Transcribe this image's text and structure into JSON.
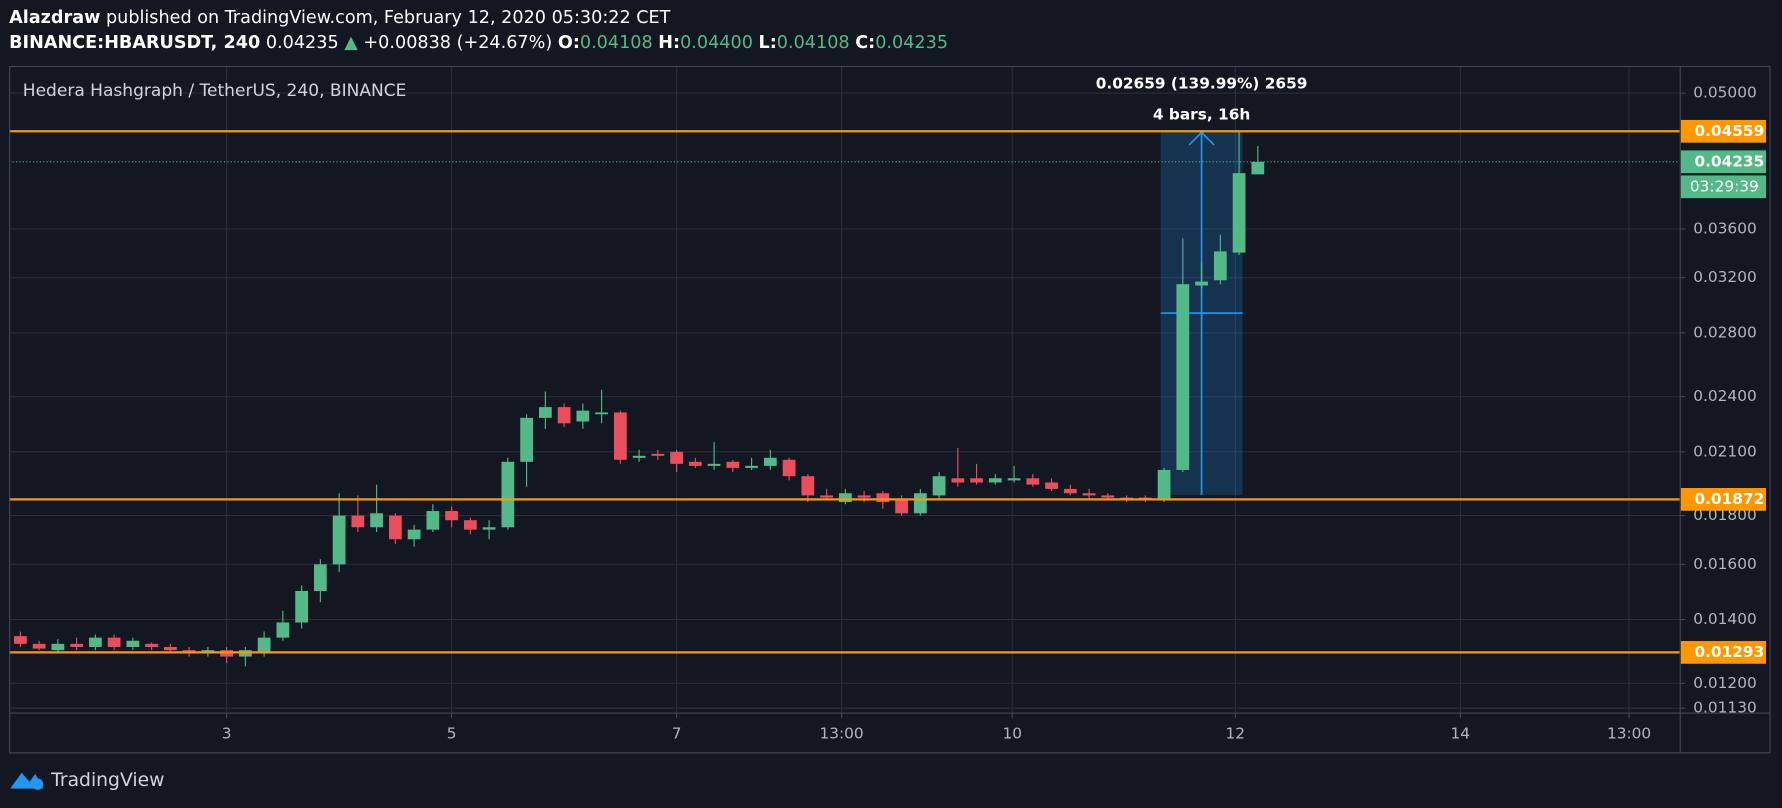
{
  "header": {
    "author": "Alazdraw",
    "published": "published on TradingView.com, February 12, 2020 05:30:22 CET",
    "symbol": "BINANCE:HBARUSDT, 240",
    "last": "0.04235",
    "arrow": "▲",
    "change": "+0.00838 (+24.67%)",
    "open_label": "O:",
    "open": "0.04108",
    "high_label": "H:",
    "high": "0.04400",
    "low_label": "L:",
    "low": "0.04108",
    "close_label": "C:",
    "close": "0.04235"
  },
  "chart_data": {
    "type": "candlestick",
    "title": "Hedera Hashgraph / TetherUS, 240, BINANCE",
    "open": [
      0.01345,
      0.0132,
      0.013,
      0.0132,
      0.0131,
      0.0134,
      0.0131,
      0.0132,
      0.0131,
      0.013,
      0.0129,
      0.013,
      0.0128,
      0.0129,
      0.0134,
      0.0139,
      0.015,
      0.016,
      0.018,
      0.0175,
      0.018,
      0.017,
      0.0174,
      0.0182,
      0.0178,
      0.0174,
      0.0175,
      0.0205,
      0.0228,
      0.0234,
      0.0226,
      0.023,
      0.0231,
      0.0207,
      0.0209,
      0.021,
      0.0205,
      0.0203,
      0.0205,
      0.0202,
      0.0203,
      0.0206,
      0.0198,
      0.0189,
      0.0186,
      0.0189,
      0.019,
      0.0187,
      0.0181,
      0.0189,
      0.0197,
      0.0197,
      0.0195,
      0.0196,
      0.0197,
      0.0195,
      0.0192,
      0.019,
      0.0189,
      0.0188,
      0.0188,
      0.0187,
      0.0201,
      0.0314,
      0.0318,
      0.034,
      0.04108
    ],
    "high": [
      0.0136,
      0.0133,
      0.01335,
      0.0134,
      0.0135,
      0.0135,
      0.0134,
      0.01325,
      0.0132,
      0.0131,
      0.0131,
      0.0131,
      0.0131,
      0.0136,
      0.0143,
      0.0152,
      0.0162,
      0.019,
      0.0189,
      0.0194,
      0.0181,
      0.0176,
      0.0185,
      0.0184,
      0.0179,
      0.0178,
      0.0207,
      0.023,
      0.0243,
      0.0236,
      0.0236,
      0.0244,
      0.0232,
      0.0211,
      0.0211,
      0.0211,
      0.0207,
      0.0215,
      0.0206,
      0.0207,
      0.0211,
      0.0207,
      0.0199,
      0.0192,
      0.0192,
      0.0191,
      0.0191,
      0.0189,
      0.0192,
      0.02,
      0.0212,
      0.0204,
      0.0199,
      0.0203,
      0.0199,
      0.0197,
      0.0194,
      0.0192,
      0.019,
      0.0189,
      0.0189,
      0.0202,
      0.0352,
      0.0332,
      0.0355,
      0.0456,
      0.044
    ],
    "low": [
      0.0131,
      0.013,
      0.0129,
      0.013,
      0.013,
      0.013,
      0.013,
      0.013,
      0.0129,
      0.0128,
      0.0128,
      0.0126,
      0.0125,
      0.0128,
      0.0133,
      0.0137,
      0.0146,
      0.0157,
      0.0173,
      0.0173,
      0.0168,
      0.0167,
      0.0173,
      0.0175,
      0.0172,
      0.017,
      0.0174,
      0.0193,
      0.0222,
      0.0223,
      0.0222,
      0.0225,
      0.0204,
      0.0205,
      0.0206,
      0.02,
      0.0202,
      0.0201,
      0.02,
      0.0201,
      0.0201,
      0.0196,
      0.0186,
      0.0187,
      0.0185,
      0.0186,
      0.0183,
      0.018,
      0.018,
      0.0187,
      0.0193,
      0.0194,
      0.0194,
      0.0195,
      0.0193,
      0.0191,
      0.0189,
      0.0187,
      0.0187,
      0.0186,
      0.0186,
      0.0186,
      0.02,
      0.0312,
      0.0315,
      0.0338,
      0.04108
    ],
    "close": [
      0.0132,
      0.01305,
      0.0132,
      0.0131,
      0.0134,
      0.0131,
      0.0133,
      0.0131,
      0.013,
      0.0129,
      0.013,
      0.0128,
      0.013,
      0.0134,
      0.0139,
      0.015,
      0.016,
      0.018,
      0.0175,
      0.0181,
      0.017,
      0.0174,
      0.0182,
      0.0178,
      0.0174,
      0.0175,
      0.0205,
      0.0228,
      0.0234,
      0.0225,
      0.0232,
      0.0231,
      0.0206,
      0.0208,
      0.0208,
      0.0204,
      0.0203,
      0.0204,
      0.0202,
      0.0203,
      0.0207,
      0.0198,
      0.0189,
      0.0188,
      0.019,
      0.0188,
      0.0186,
      0.0181,
      0.019,
      0.0198,
      0.0195,
      0.0195,
      0.0197,
      0.0197,
      0.0194,
      0.0192,
      0.019,
      0.0189,
      0.0188,
      0.0187,
      0.0187,
      0.0201,
      0.0315,
      0.0317,
      0.0341,
      0.0412,
      0.04235
    ],
    "up_color": "#53b987",
    "down_color": "#eb4d5c",
    "log_scale": true,
    "grid": true,
    "ylim": [
      0.01118,
      0.0534
    ],
    "yticks": [
      {
        "value": 0.05,
        "label": "0.05000"
      },
      {
        "value": 0.036,
        "label": "0.03600"
      },
      {
        "value": 0.032,
        "label": "0.03200"
      },
      {
        "value": 0.028,
        "label": "0.02800"
      },
      {
        "value": 0.024,
        "label": "0.02400"
      },
      {
        "value": 0.021,
        "label": "0.02100"
      },
      {
        "value": 0.018,
        "label": "0.01800"
      },
      {
        "value": 0.016,
        "label": "0.01600"
      },
      {
        "value": 0.014,
        "label": "0.01400"
      },
      {
        "value": 0.012,
        "label": "0.01200"
      },
      {
        "value": 0.0113,
        "label": "0.01130"
      }
    ],
    "xlim": [
      -0.6,
      88.5
    ],
    "xticks": [
      {
        "value": 11,
        "label": "3"
      },
      {
        "value": 23,
        "label": "5"
      },
      {
        "value": 35,
        "label": "7"
      },
      {
        "value": 43.8,
        "label": "13:00"
      },
      {
        "value": 52.9,
        "label": "10"
      },
      {
        "value": 64.8,
        "label": "12"
      },
      {
        "value": 76.8,
        "label": "14"
      },
      {
        "value": 85.8,
        "label": "13:00"
      }
    ],
    "hlines": [
      {
        "value": 0.04559,
        "label": "0.04559"
      },
      {
        "value": 0.01872,
        "label": "0.01872"
      },
      {
        "value": 0.01293,
        "label": "0.01293"
      }
    ],
    "hline_color": "#ff9800",
    "current_price": {
      "value": 0.04235,
      "label": "0.04235"
    },
    "countdown": "03:29:39",
    "measure": {
      "label": "0.02659 (139.99%) 2659",
      "duration": "4 bars, 16h",
      "color": "#2196f3"
    }
  },
  "footer": {
    "brand": "TradingView"
  }
}
